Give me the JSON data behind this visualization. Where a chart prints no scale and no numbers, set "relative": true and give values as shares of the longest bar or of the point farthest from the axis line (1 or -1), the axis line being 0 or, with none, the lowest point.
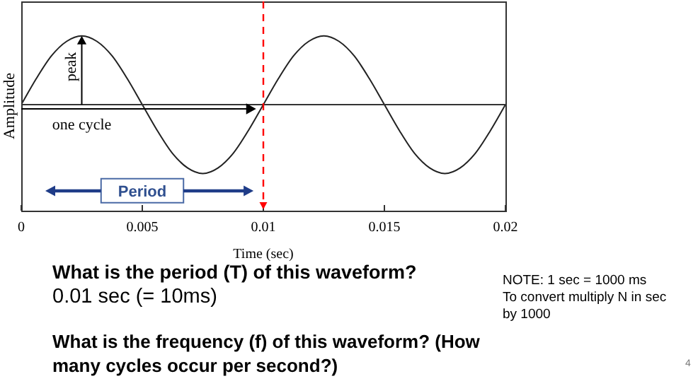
{
  "chart_data": {
    "type": "line",
    "relative": true,
    "xlabel": "Time (sec)",
    "ylabel": "Amplitude",
    "x": [
      0,
      0.000625,
      0.00125,
      0.001875,
      0.0025,
      0.003125,
      0.00375,
      0.004375,
      0.005,
      0.005625,
      0.00625,
      0.006875,
      0.0075,
      0.008125,
      0.00875,
      0.009375,
      0.01,
      0.010625,
      0.01125,
      0.011875,
      0.0125,
      0.013125,
      0.01375,
      0.014375,
      0.015,
      0.015625,
      0.01625,
      0.016875,
      0.0175,
      0.018125,
      0.01875,
      0.019375,
      0.02
    ],
    "series": [
      {
        "color": "#222222",
        "values": [
          0,
          0.38,
          0.71,
          0.92,
          1,
          0.92,
          0.71,
          0.38,
          0,
          -0.38,
          -0.71,
          -0.92,
          -1,
          -0.92,
          -0.71,
          -0.38,
          0,
          0.38,
          0.71,
          0.92,
          1,
          0.92,
          0.71,
          0.38,
          0,
          -0.38,
          -0.71,
          -0.92,
          -1,
          -0.92,
          -0.71,
          -0.38,
          0
        ]
      }
    ],
    "xlim": [
      0,
      0.02
    ],
    "xticks": [
      0,
      0.005,
      0.01,
      0.015,
      0.02
    ],
    "ref_lines": [
      {
        "axis": "x",
        "value": 0.01,
        "color": "#ff0000",
        "line_style": "dashed"
      }
    ],
    "grid": false,
    "legend": false,
    "marker": "none",
    "line_style": "solid",
    "tick_labels": "x",
    "annotations": [
      "peak",
      "one cycle",
      "Period",
      "What is the period (T) of this waveform?",
      "0.01 sec (= 10ms)",
      "What is the frequency (f) of this waveform? (How many cycles occur per second?)",
      "NOTE: 1 sec = 1000 ms\nTo convert multiply N in sec\nby 1000",
      "4"
    ]
  }
}
